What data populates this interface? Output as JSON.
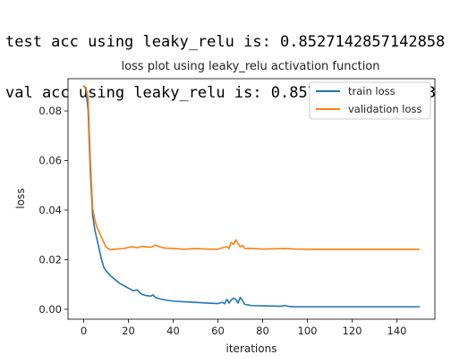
{
  "console": {
    "lines": [
      "test acc using leaky_relu is: 0.8527142857142858",
      "val acc using leaky_relu is: 0.8572857142857143"
    ]
  },
  "chart_data": {
    "type": "line",
    "title": "loss plot using leaky_relu activation function",
    "xlabel": "iterations",
    "ylabel": "loss",
    "xlim": [
      -7,
      157
    ],
    "ylim": [
      -0.004,
      0.093
    ],
    "xticks": [
      0,
      20,
      40,
      60,
      80,
      100,
      120,
      140
    ],
    "xtick_labels": [
      "0",
      "20",
      "40",
      "60",
      "80",
      "100",
      "120",
      "140"
    ],
    "yticks": [
      0.0,
      0.02,
      0.04,
      0.06,
      0.08
    ],
    "ytick_labels": [
      "0.00",
      "0.02",
      "0.04",
      "0.06",
      "0.08"
    ],
    "grid": false,
    "legend_position": "top-right",
    "series": [
      {
        "name": "train loss",
        "color": "#1f77b4",
        "x": [
          0,
          1,
          2,
          3,
          4,
          5,
          6,
          7,
          8,
          9,
          10,
          12,
          14,
          16,
          18,
          20,
          22,
          24,
          25,
          26,
          28,
          30,
          31,
          32,
          34,
          36,
          40,
          45,
          50,
          55,
          60,
          62,
          63,
          64,
          65,
          66,
          67,
          68,
          69,
          70,
          71,
          72,
          75,
          80,
          85,
          88,
          90,
          92,
          95,
          100,
          110,
          120,
          130,
          140,
          150
        ],
        "y": [
          0.09,
          0.089,
          0.08,
          0.055,
          0.038,
          0.032,
          0.028,
          0.024,
          0.02,
          0.017,
          0.0155,
          0.0135,
          0.012,
          0.0105,
          0.0095,
          0.0085,
          0.0075,
          0.0078,
          0.0068,
          0.006,
          0.0055,
          0.0053,
          0.0058,
          0.0048,
          0.0042,
          0.0038,
          0.0033,
          0.003,
          0.0028,
          0.0025,
          0.0023,
          0.0028,
          0.0022,
          0.004,
          0.0025,
          0.0038,
          0.0045,
          0.004,
          0.0025,
          0.0048,
          0.0035,
          0.002,
          0.0015,
          0.0014,
          0.0013,
          0.0012,
          0.0015,
          0.0011,
          0.001,
          0.001,
          0.001,
          0.001,
          0.001,
          0.001,
          0.001
        ]
      },
      {
        "name": "validation loss",
        "color": "#ff7f0e",
        "x": [
          0,
          1,
          2,
          3,
          4,
          5,
          6,
          7,
          8,
          9,
          10,
          11,
          12,
          14,
          16,
          18,
          20,
          22,
          24,
          26,
          28,
          30,
          32,
          34,
          36,
          40,
          45,
          50,
          55,
          60,
          62,
          64,
          65,
          66,
          67,
          68,
          69,
          70,
          71,
          72,
          75,
          80,
          85,
          90,
          95,
          100,
          110,
          120,
          130,
          140,
          150
        ],
        "y": [
          0.09,
          0.0895,
          0.085,
          0.06,
          0.041,
          0.036,
          0.033,
          0.031,
          0.029,
          0.027,
          0.025,
          0.0245,
          0.024,
          0.0242,
          0.0244,
          0.0245,
          0.025,
          0.0252,
          0.0248,
          0.0254,
          0.0252,
          0.025,
          0.0258,
          0.0252,
          0.0247,
          0.0245,
          0.0242,
          0.0245,
          0.0243,
          0.0242,
          0.0248,
          0.0252,
          0.0245,
          0.027,
          0.0262,
          0.028,
          0.0265,
          0.0252,
          0.0258,
          0.0245,
          0.0246,
          0.0243,
          0.0244,
          0.0245,
          0.0243,
          0.0242,
          0.0242,
          0.0242,
          0.0242,
          0.0242,
          0.0242
        ]
      }
    ]
  }
}
